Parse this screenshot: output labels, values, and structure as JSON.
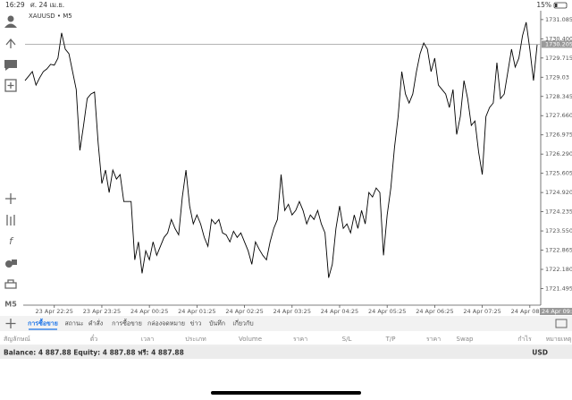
{
  "status_bar": {
    "time": "16:29",
    "date": "ศ. 24 เม.ย.",
    "battery": "15%"
  },
  "chart_data": {
    "type": "line",
    "title": "XAUUSD • M5",
    "color": "#000000",
    "values": [
      1728.91,
      1729.07,
      1729.23,
      1728.75,
      1729.01,
      1729.23,
      1729.33,
      1729.49,
      1729.46,
      1729.71,
      1730.61,
      1730.03,
      1729.87,
      1729.23,
      1728.59,
      1726.42,
      1727.31,
      1728.27,
      1728.43,
      1728.5,
      1726.67,
      1725.24,
      1725.72,
      1724.92,
      1725.72,
      1725.4,
      1725.56,
      1724.6,
      1724.6,
      1724.6,
      1722.52,
      1723.16,
      1722.04,
      1722.84,
      1722.52,
      1723.16,
      1722.68,
      1723.0,
      1723.32,
      1723.48,
      1723.96,
      1723.64,
      1723.41,
      1724.76,
      1725.72,
      1724.44,
      1723.8,
      1724.12,
      1723.8,
      1723.32,
      1723.0,
      1723.96,
      1723.8,
      1723.96,
      1723.48,
      1723.41,
      1723.16,
      1723.54,
      1723.32,
      1723.48,
      1723.16,
      1722.84,
      1722.36,
      1723.16,
      1722.9,
      1722.68,
      1722.52,
      1723.16,
      1723.64,
      1723.96,
      1725.56,
      1724.28,
      1724.5,
      1724.12,
      1724.28,
      1724.6,
      1724.28,
      1723.8,
      1724.12,
      1723.96,
      1724.28,
      1723.8,
      1723.48,
      1721.88,
      1722.36,
      1723.64,
      1724.44,
      1723.64,
      1723.8,
      1723.48,
      1724.12,
      1723.64,
      1724.28,
      1723.8,
      1724.92,
      1724.76,
      1725.08,
      1724.92,
      1722.68,
      1724.12,
      1725.08,
      1726.52,
      1727.63,
      1729.23,
      1728.43,
      1728.11,
      1728.43,
      1729.23,
      1729.87,
      1730.25,
      1730.03,
      1729.23,
      1729.71,
      1728.75,
      1728.59,
      1728.43,
      1727.95,
      1728.59,
      1726.99,
      1727.63,
      1728.91,
      1728.27,
      1727.31,
      1727.47,
      1726.36,
      1725.56,
      1727.63,
      1727.95,
      1728.11,
      1729.55,
      1728.27,
      1728.43,
      1729.23,
      1730.03,
      1729.39,
      1729.71,
      1730.51,
      1730.99,
      1730.03,
      1728.91,
      1730.19
    ],
    "xlim": [
      0,
      140
    ],
    "xticks": [
      {
        "value": 8,
        "label": "23 Apr 22:25"
      },
      {
        "value": 21,
        "label": "23 Apr 23:25"
      },
      {
        "value": 34,
        "label": "24 Apr 00:25"
      },
      {
        "value": 47,
        "label": "24 Apr 01:25"
      },
      {
        "value": 60,
        "label": "24 Apr 02:25"
      },
      {
        "value": 73,
        "label": "24 Apr 03:25"
      },
      {
        "value": 86,
        "label": "24 Apr 04:25"
      },
      {
        "value": 99,
        "label": "24 Apr 05:25"
      },
      {
        "value": 112,
        "label": "24 Apr 06:25"
      },
      {
        "value": 125,
        "label": "24 Apr 07:25"
      },
      {
        "value": 138,
        "label": "24 Apr 08:25"
      }
    ],
    "current_time_label": "24 Apr 09:25",
    "ylim": [
      1721.0,
      1731.4
    ],
    "yticks": [
      1731.085,
      {
        "value": 1730.4,
        "label": "1730.400"
      },
      1729.715,
      1729.03,
      1728.345,
      {
        "value": 1727.66,
        "label": "1727.660"
      },
      1726.975,
      {
        "value": 1726.29,
        "label": "1726.290"
      },
      1725.605,
      {
        "value": 1724.92,
        "label": "1724.920"
      },
      1724.235,
      {
        "value": 1723.55,
        "label": "1723.550"
      },
      1722.865,
      {
        "value": 1722.18,
        "label": "1722.180"
      },
      1721.495
    ],
    "current_price": 1730.205,
    "grid": false
  },
  "timeframe_button": "M5",
  "tabs": [
    "การซื้อขาย",
    "สถานะ",
    "คำสั่ง",
    "การซื้อขาย",
    "กล่องจดหมาย",
    "ข่าว",
    "บันทึก",
    "เกี่ยวกับ"
  ],
  "active_tab": 0,
  "columns": [
    "สัญลักษณ์",
    "ตั๋ว",
    "เวลา",
    "ประเภท",
    "Volume",
    "ราคา",
    "S/L",
    "T/P",
    "ราคา",
    "Swap",
    "กำไร",
    "หมายเหตุ"
  ],
  "balance": "Balance: 4 887.88 Equity: 4 887.88 ฟรี: 4 887.88",
  "currency": "USD"
}
